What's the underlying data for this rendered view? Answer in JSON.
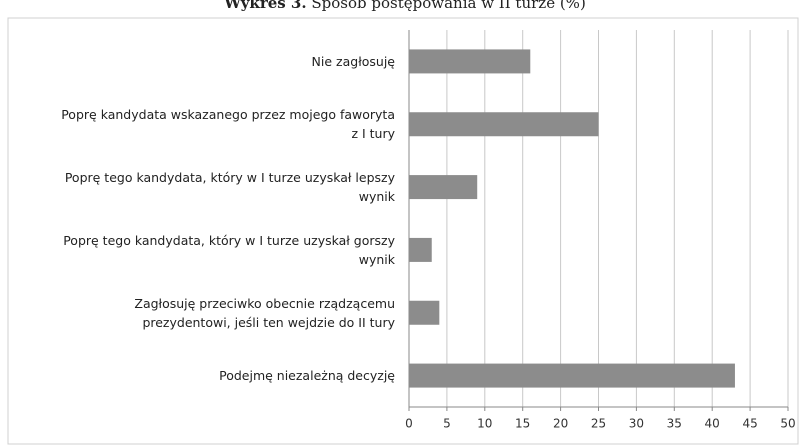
{
  "chart_data": {
    "type": "bar",
    "orientation": "horizontal",
    "title_label": "Wykres 3.",
    "title": "Sposób postępowania w II turze (%)",
    "categories": [
      "Nie zagłosuję",
      "Poprę kandydata wskazanego przez mojego faworyta\nz I tury",
      "Poprę tego kandydata, który w I turze uzyskał lepszy\nwynik",
      "Poprę tego kandydata, który w I turze uzyskał gorszy\nwynik",
      "Zagłosuję przeciwko obecnie rządzącemu\nprezydentowi, jeśli ten wejdzie do II tury",
      "Podejmę niezależną decyzję"
    ],
    "values": [
      16,
      25,
      9,
      3,
      4,
      43
    ],
    "color": "#8c8c8c",
    "xlim": [
      0,
      50
    ],
    "xticks": [
      0,
      5,
      10,
      15,
      20,
      25,
      30,
      35,
      40,
      45,
      50
    ],
    "grid": true
  }
}
